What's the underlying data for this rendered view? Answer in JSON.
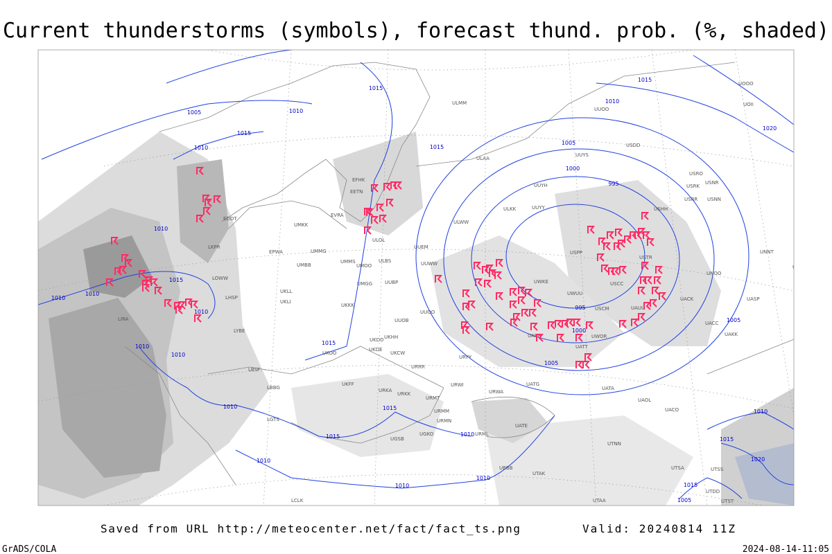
{
  "title": "Current thunderstorms (symbols), forecast thund. prob. (%, shaded)",
  "footer": {
    "source": "Saved from URL http://meteocenter.net/fact/fact_ts.png",
    "valid": "Valid: 20240814 11Z",
    "software": "GrADS/COLA",
    "timestamp": "2024-08-14-11:05"
  },
  "isobar_labels": [
    1015,
    1010,
    1005,
    1015,
    1010,
    1010,
    1015,
    1010,
    1010,
    1010,
    1010,
    1010,
    1015,
    1015,
    1015,
    1010,
    1020,
    1005,
    1000,
    995,
    995,
    1000,
    1005,
    1005,
    1010,
    1015,
    1015,
    1010,
    1010,
    1010,
    1010,
    1010,
    1015,
    1020,
    1015,
    1005
  ],
  "station_labels": [
    "UUYS",
    "USDD",
    "UUYH",
    "USRO",
    "USRK",
    "USNR",
    "USRR",
    "USNN",
    "UUYY",
    "ULKK",
    "USHH",
    "ULWW",
    "UUEM",
    "USPP",
    "USTR",
    "UUWW",
    "ULOL",
    "UMMG",
    "UMMS",
    "UMOO",
    "ULBS",
    "UMBB",
    "EPWA",
    "UKLL",
    "UKLI",
    "UUBP",
    "UMGG",
    "UKKK",
    "UUOO",
    "UWKE",
    "UWUU",
    "USCC",
    "UNOO",
    "UACK",
    "UAUU",
    "UNNT",
    "UNBB",
    "UASP",
    "UACC",
    "UAKK",
    "UATT",
    "UARR",
    "UWOR",
    "UUOB",
    "UKHH",
    "UKDD",
    "UKDE",
    "UKOO",
    "UKCW",
    "URRR",
    "URYY",
    "UKFF",
    "URKA",
    "URKK",
    "URWI",
    "UATG",
    "UATA",
    "UAOL",
    "UACO",
    "URWA",
    "URMT",
    "URMM",
    "URMN",
    "UGSB",
    "UGKO",
    "UTNN",
    "UATE",
    "URML",
    "UBBB",
    "UTAK",
    "UTSA",
    "UTSS",
    "UTAA",
    "UTDD",
    "UTST",
    "EFHK",
    "EETN",
    "EVRA",
    "UMKK",
    "EDDT",
    "LKPR",
    "LOWW",
    "LHSP",
    "LYBE",
    "LBSF",
    "LBBG",
    "LIRA",
    "LGTS",
    "LCLK",
    "ULAA",
    "ULMM",
    "USCM",
    "UUOO",
    "UOOO",
    "UOII"
  ]
}
